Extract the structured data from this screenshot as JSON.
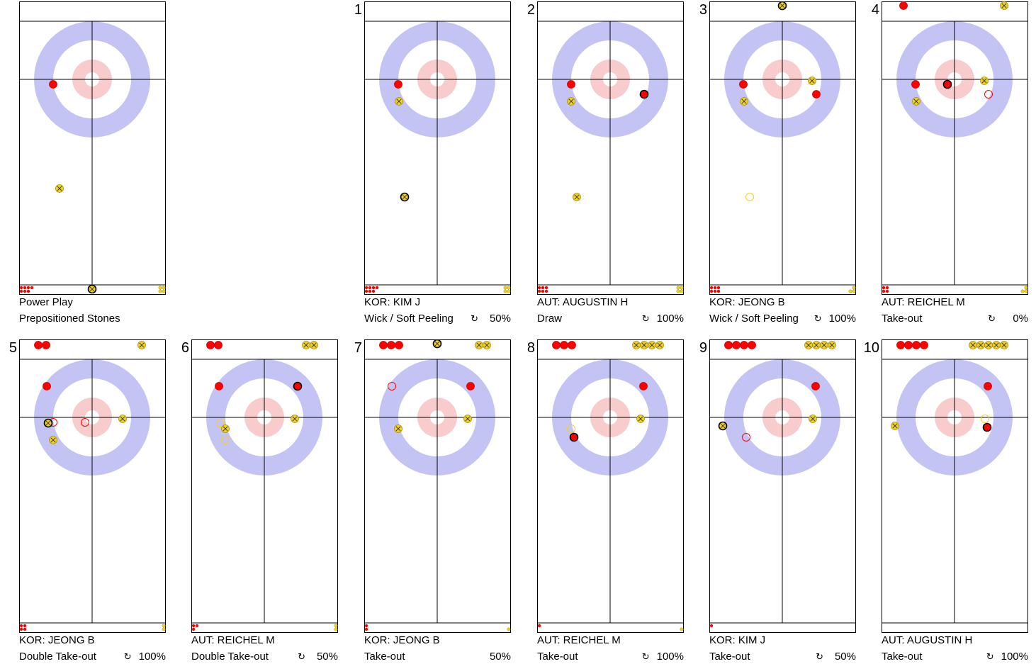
{
  "colors": {
    "red_team": "#ff0000",
    "yellow_team": "#f0d020",
    "twelve_foot": "#c4c4f4",
    "four_foot": "#f8cccc"
  },
  "panels": [
    {
      "number": "",
      "line1": "Power Play",
      "line2": "Prepositioned Stones",
      "rotation": "",
      "percent": "",
      "stones": [
        {
          "team": "red",
          "x": -55,
          "y": 7
        },
        {
          "team": "yellow",
          "x": -46,
          "y": 154
        },
        {
          "team": "yellow",
          "x": 0,
          "y": 296,
          "last": true
        }
      ],
      "ghosts": [],
      "left_red": 7,
      "right_yellow": 4
    },
    {
      "number": "1",
      "line1": "KOR: KIM J",
      "line2": "Wick / Soft Peeling",
      "rotation": "↻",
      "percent": "50%",
      "stones": [
        {
          "team": "red",
          "x": -55,
          "y": 7
        },
        {
          "team": "yellow",
          "x": -54,
          "y": 31
        },
        {
          "team": "yellow",
          "x": -46,
          "y": 166,
          "last": true
        }
      ],
      "ghosts": [],
      "left_red": 7,
      "right_yellow": 4
    },
    {
      "number": "2",
      "line1": "AUT: AUGUSTIN H",
      "line2": "Draw",
      "rotation": "↻",
      "percent": "100%",
      "stones": [
        {
          "team": "red",
          "x": -55,
          "y": 7
        },
        {
          "team": "yellow",
          "x": -55,
          "y": 31
        },
        {
          "team": "yellow",
          "x": -47,
          "y": 166
        },
        {
          "team": "red",
          "x": 48,
          "y": 21,
          "last": true
        }
      ],
      "ghosts": [],
      "left_red": 6,
      "right_yellow": 4
    },
    {
      "number": "3",
      "line1": "KOR: JEONG B",
      "line2": "Wick / Soft Peeling",
      "rotation": "↻",
      "percent": "100%",
      "stones": [
        {
          "team": "red",
          "x": -55,
          "y": 7
        },
        {
          "team": "yellow",
          "x": -54,
          "y": 31
        },
        {
          "team": "yellow",
          "x": 42,
          "y": 2
        },
        {
          "team": "red",
          "x": 48,
          "y": 21
        },
        {
          "team": "yellow",
          "x": 0,
          "y": -104,
          "last": true
        }
      ],
      "ghosts": [
        {
          "team": "yellow",
          "x": -46,
          "y": 166
        }
      ],
      "left_red": 6,
      "right_yellow": 3
    },
    {
      "number": "4",
      "line1": "AUT: REICHEL M",
      "line2": "Take-out",
      "rotation": "↻",
      "percent": "0%",
      "stones": [
        {
          "team": "red",
          "x": -55,
          "y": 7
        },
        {
          "team": "yellow",
          "x": -54,
          "y": 31
        },
        {
          "team": "yellow",
          "x": 42,
          "y": 2
        },
        {
          "team": "red",
          "x": -10,
          "y": 7,
          "last": true
        },
        {
          "team": "red",
          "x": -72,
          "y": -104
        },
        {
          "team": "yellow",
          "x": 70,
          "y": -104
        }
      ],
      "ghosts": [
        {
          "team": "red",
          "x": 48,
          "y": 21
        }
      ],
      "left_red": 4,
      "right_yellow": 3
    },
    {
      "number": "5",
      "line1": "KOR: JEONG B",
      "line2": "Double Take-out",
      "rotation": "↻",
      "percent": "100%",
      "stones": [
        {
          "team": "red",
          "x": -64,
          "y": -44
        },
        {
          "team": "yellow",
          "x": 43,
          "y": 2
        },
        {
          "team": "yellow",
          "x": -55,
          "y": 32
        },
        {
          "team": "yellow",
          "x": -62,
          "y": 8,
          "last": true
        }
      ],
      "ghosts": [
        {
          "team": "red",
          "x": -55,
          "y": 7
        },
        {
          "team": "red",
          "x": -10,
          "y": 7
        }
      ],
      "top_red": 2,
      "top_yellow": 1,
      "left_red": 4,
      "right_yellow": 2
    },
    {
      "number": "6",
      "line1": "AUT: REICHEL M",
      "line2": "Double Take-out",
      "rotation": "↻",
      "percent": "50%",
      "stones": [
        {
          "team": "red",
          "x": -64,
          "y": -44
        },
        {
          "team": "yellow",
          "x": 43,
          "y": 2
        },
        {
          "team": "yellow",
          "x": -55,
          "y": 16
        },
        {
          "team": "red",
          "x": 47,
          "y": -44,
          "last": true
        }
      ],
      "ghosts": [
        {
          "team": "yellow",
          "x": -62,
          "y": 8
        },
        {
          "team": "yellow",
          "x": -55,
          "y": 32
        }
      ],
      "top_red": 2,
      "top_yellow": 2,
      "left_red": 3,
      "right_yellow": 2
    },
    {
      "number": "7",
      "line1": "KOR: JEONG B",
      "line2": "Take-out",
      "rotation": "",
      "percent": "50%",
      "stones": [
        {
          "team": "red",
          "x": 47,
          "y": -44
        },
        {
          "team": "yellow",
          "x": 43,
          "y": 2
        },
        {
          "team": "yellow",
          "x": -55,
          "y": 16
        },
        {
          "team": "yellow",
          "x": 0,
          "y": -104,
          "last": true
        }
      ],
      "ghosts": [
        {
          "team": "red",
          "x": -64,
          "y": -44
        }
      ],
      "top_red": 3,
      "top_yellow": 2,
      "left_red": 2,
      "right_yellow": 1
    },
    {
      "number": "8",
      "line1": "AUT: REICHEL M",
      "line2": "Take-out",
      "rotation": "↻",
      "percent": "100%",
      "stones": [
        {
          "team": "red",
          "x": 47,
          "y": -44
        },
        {
          "team": "yellow",
          "x": 43,
          "y": 2
        },
        {
          "team": "red",
          "x": -51,
          "y": 28,
          "last": true
        }
      ],
      "ghosts": [
        {
          "team": "yellow",
          "x": -55,
          "y": 16
        }
      ],
      "top_red": 3,
      "top_yellow": 4,
      "left_red": 1,
      "right_yellow": 1
    },
    {
      "number": "9",
      "line1": "KOR: KIM J",
      "line2": "Take-out",
      "rotation": "↻",
      "percent": "50%",
      "stones": [
        {
          "team": "red",
          "x": 47,
          "y": -44
        },
        {
          "team": "yellow",
          "x": 43,
          "y": 2
        },
        {
          "team": "yellow",
          "x": -84,
          "y": 12,
          "last": true
        }
      ],
      "ghosts": [
        {
          "team": "red",
          "x": -51,
          "y": 28
        }
      ],
      "top_red": 4,
      "top_yellow": 4,
      "left_red": 1,
      "right_yellow": 0
    },
    {
      "number": "10",
      "line1": "AUT: AUGUSTIN H",
      "line2": "Take-out",
      "rotation": "↻",
      "percent": "100%",
      "stones": [
        {
          "team": "red",
          "x": 47,
          "y": -44
        },
        {
          "team": "yellow",
          "x": -84,
          "y": 12
        },
        {
          "team": "red",
          "x": 46,
          "y": 14,
          "last": true
        }
      ],
      "ghosts": [
        {
          "team": "yellow",
          "x": 43,
          "y": 2
        }
      ],
      "top_red": 4,
      "top_yellow": 5,
      "left_red": 0,
      "right_yellow": 0
    }
  ]
}
